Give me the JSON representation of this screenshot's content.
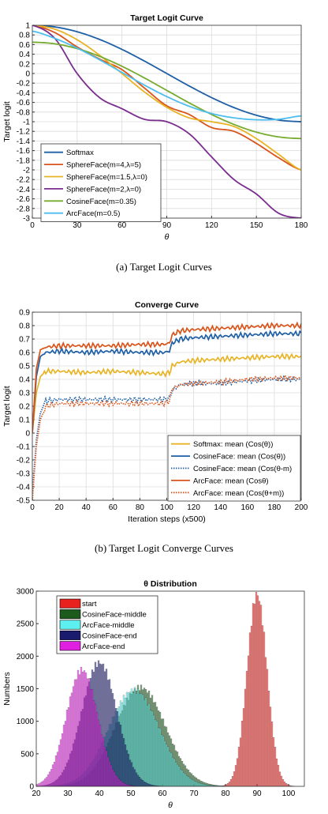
{
  "captions": {
    "a": "(a)  Target Logit Curves",
    "b": "(b)  Target Logit Converge Curves"
  },
  "chart_data": [
    {
      "type": "line",
      "title": "Target Logit Curve",
      "xlabel": "θ",
      "ylabel": "Target logit",
      "xlim": [
        0,
        180
      ],
      "ylim": [
        -3,
        1
      ],
      "xticks": [
        0,
        30,
        60,
        90,
        120,
        150,
        180
      ],
      "yticks": [
        1,
        0.8,
        0.6,
        0.4,
        0.2,
        0,
        -0.2,
        -0.4,
        -0.6,
        -0.8,
        -1,
        -1.2,
        -1.4,
        -1.6,
        -1.8,
        -2,
        -2.2,
        -2.4,
        -2.6,
        -2.8,
        -3
      ],
      "grid": true,
      "legend": "bottom-left",
      "series": [
        {
          "name": "Softmax",
          "color": "#1f5fa5",
          "x": [
            0,
            15,
            30,
            45,
            60,
            75,
            90,
            105,
            120,
            135,
            150,
            165,
            180
          ],
          "y": [
            1,
            0.966,
            0.866,
            0.707,
            0.5,
            0.259,
            0,
            -0.259,
            -0.5,
            -0.707,
            -0.866,
            -0.966,
            -1
          ]
        },
        {
          "name": "SphereFace(m=4,λ=5)",
          "color": "#d9541a",
          "x": [
            0,
            15,
            30,
            45,
            60,
            75,
            90,
            105,
            120,
            135,
            150,
            165,
            180
          ],
          "y": [
            1,
            0.85,
            0.55,
            0.3,
            0.08,
            -0.3,
            -0.67,
            -0.85,
            -1.12,
            -1.2,
            -1.45,
            -1.75,
            -2
          ]
        },
        {
          "name": "SphereFace(m=1.5,λ=0)",
          "color": "#e8b325",
          "x": [
            0,
            15,
            30,
            45,
            60,
            75,
            90,
            105,
            120,
            135,
            150,
            165,
            180
          ],
          "y": [
            1,
            0.92,
            0.7,
            0.38,
            0,
            -0.38,
            -0.7,
            -0.92,
            -1,
            -1.1,
            -1.35,
            -1.68,
            -2
          ]
        },
        {
          "name": "SphereFace(m=2,λ=0)",
          "color": "#7b2d8f",
          "x": [
            0,
            15,
            30,
            45,
            60,
            75,
            90,
            105,
            120,
            135,
            150,
            165,
            180
          ],
          "y": [
            1,
            0.73,
            0,
            -0.5,
            -0.73,
            -0.95,
            -1,
            -1.25,
            -1.73,
            -2.2,
            -2.5,
            -2.9,
            -3
          ]
        },
        {
          "name": "CosineFace(m=0.35)",
          "color": "#77ab30",
          "x": [
            0,
            15,
            30,
            45,
            60,
            75,
            90,
            105,
            120,
            135,
            150,
            165,
            180
          ],
          "y": [
            0.65,
            0.616,
            0.516,
            0.357,
            0.15,
            -0.091,
            -0.35,
            -0.609,
            -0.85,
            -1.057,
            -1.216,
            -1.316,
            -1.35
          ]
        },
        {
          "name": "ArcFace(m=0.5)",
          "color": "#4dbeee",
          "x": [
            0,
            15,
            30,
            45,
            60,
            75,
            90,
            105,
            120,
            135,
            150,
            165,
            180
          ],
          "y": [
            0.878,
            0.729,
            0.527,
            0.285,
            0.022,
            -0.24,
            -0.479,
            -0.68,
            -0.83,
            -0.92,
            -0.96,
            -0.95,
            -0.88
          ]
        }
      ]
    },
    {
      "type": "line",
      "title": "Converge Curve",
      "xlabel": "Iteration steps (x500)",
      "ylabel": "Target logit",
      "xlim": [
        0,
        200
      ],
      "ylim": [
        -0.5,
        0.9
      ],
      "xticks": [
        0,
        20,
        40,
        60,
        80,
        100,
        120,
        140,
        160,
        180,
        200
      ],
      "yticks": [
        0.9,
        0.8,
        0.7,
        0.6,
        0.5,
        0.4,
        0.3,
        0.2,
        0.1,
        0,
        -0.1,
        -0.2,
        -0.3,
        -0.4,
        -0.5
      ],
      "grid": true,
      "legend": "bottom-right",
      "series": [
        {
          "name": "Softmax: mean (Cos(θ))",
          "color": "#e8b325",
          "dash": false,
          "x": [
            0,
            3,
            6,
            10,
            20,
            40,
            60,
            80,
            98,
            102,
            104,
            110,
            120,
            140,
            160,
            180,
            200
          ],
          "y": [
            0,
            0.3,
            0.42,
            0.46,
            0.46,
            0.45,
            0.46,
            0.45,
            0.44,
            0.45,
            0.5,
            0.53,
            0.54,
            0.55,
            0.56,
            0.57,
            0.57
          ]
        },
        {
          "name": "CosineFace: mean (Cos(θ))",
          "color": "#1f5fa5",
          "dash": false,
          "x": [
            0,
            3,
            6,
            10,
            20,
            40,
            60,
            80,
            98,
            102,
            104,
            110,
            120,
            140,
            160,
            180,
            200
          ],
          "y": [
            0,
            0.42,
            0.57,
            0.6,
            0.61,
            0.6,
            0.61,
            0.6,
            0.6,
            0.61,
            0.67,
            0.7,
            0.71,
            0.72,
            0.73,
            0.74,
            0.74
          ]
        },
        {
          "name": "CosineFace: mean (Cos(θ-m)",
          "color": "#1f5fa5",
          "dash": true,
          "x": [
            0,
            3,
            6,
            10,
            20,
            40,
            60,
            80,
            98,
            102,
            104,
            110,
            120,
            140,
            160,
            180,
            200
          ],
          "y": [
            -0.45,
            -0.05,
            0.15,
            0.24,
            0.25,
            0.25,
            0.25,
            0.25,
            0.25,
            0.26,
            0.32,
            0.36,
            0.37,
            0.37,
            0.39,
            0.4,
            0.4
          ]
        },
        {
          "name": "ArcFace: mean (Cosθ)",
          "color": "#d9541a",
          "dash": false,
          "x": [
            0,
            3,
            6,
            10,
            20,
            40,
            60,
            80,
            98,
            102,
            104,
            110,
            120,
            140,
            160,
            180,
            200
          ],
          "y": [
            0,
            0.48,
            0.62,
            0.64,
            0.65,
            0.65,
            0.65,
            0.66,
            0.66,
            0.67,
            0.73,
            0.76,
            0.77,
            0.78,
            0.79,
            0.8,
            0.8
          ]
        },
        {
          "name": "ArcFace: mean (Cos(θ+m))",
          "color": "#d9541a",
          "dash": true,
          "x": [
            0,
            3,
            6,
            10,
            20,
            40,
            60,
            80,
            98,
            102,
            104,
            110,
            120,
            140,
            160,
            180,
            200
          ],
          "y": [
            -0.5,
            -0.1,
            0.1,
            0.2,
            0.22,
            0.22,
            0.22,
            0.22,
            0.22,
            0.24,
            0.33,
            0.36,
            0.37,
            0.38,
            0.4,
            0.41,
            0.41
          ]
        }
      ]
    },
    {
      "type": "bar",
      "title": "θ Distribution",
      "xlabel": "θ",
      "ylabel": "Numbers",
      "xlim": [
        20,
        105
      ],
      "ylim": [
        0,
        3000
      ],
      "xticks": [
        20,
        30,
        40,
        50,
        60,
        70,
        80,
        90,
        100
      ],
      "yticks": [
        0,
        500,
        1000,
        1500,
        2000,
        2500,
        3000
      ],
      "grid": false,
      "legend": "top-left",
      "series": [
        {
          "name": "start",
          "color": "#e8201e",
          "mean": 90,
          "sd": 3.2,
          "peak": 2950
        },
        {
          "name": "CosineFace-middle",
          "color": "#1d5a1d",
          "mean": 53,
          "sd": 8,
          "peak": 1520
        },
        {
          "name": "ArcFace-middle",
          "color": "#5ef0f0",
          "mean": 51,
          "sd": 8,
          "peak": 1480
        },
        {
          "name": "CosineFace-end",
          "color": "#1a1a6e",
          "mean": 40,
          "sd": 5.6,
          "peak": 1900
        },
        {
          "name": "ArcFace-end",
          "color": "#e020e0",
          "mean": 34.5,
          "sd": 5,
          "peak": 1790
        }
      ]
    }
  ]
}
